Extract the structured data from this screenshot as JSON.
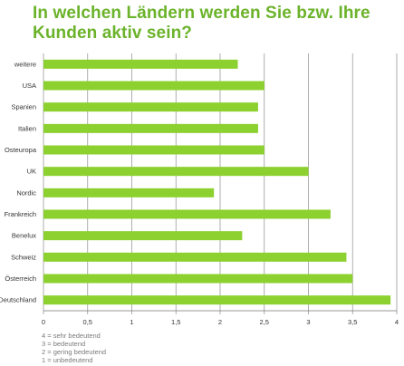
{
  "title": "In welchen Ländern werden Sie bzw. Ihre Kunden aktiv sein?",
  "legend_notes": [
    "4 = sehr bedeutend",
    "3 = bedeutend",
    "2 = gering bedeutend",
    "1 = unbedeutend"
  ],
  "colors": {
    "bar": "#8cd12f",
    "grid": "#9a9a9a",
    "title": "#6bb32a"
  },
  "chart_data": {
    "type": "bar",
    "orientation": "horizontal",
    "title": "In welchen Ländern werden Sie bzw. Ihre Kunden aktiv sein?",
    "categories": [
      "weitere",
      "USA",
      "Spanien",
      "Italien",
      "Osteuropa",
      "UK",
      "Nordic",
      "Frankreich",
      "Benelux",
      "Schweiz",
      "Österreich",
      "Deutschland"
    ],
    "values": [
      2.2,
      2.5,
      2.43,
      2.43,
      2.5,
      3.0,
      1.93,
      3.25,
      2.25,
      3.43,
      3.5,
      3.93
    ],
    "x_ticks": [
      "0",
      "0,5",
      "1",
      "1,5",
      "2",
      "2,5",
      "3",
      "3,5",
      "4"
    ],
    "xlim": [
      0,
      4
    ],
    "grid": "vertical"
  }
}
